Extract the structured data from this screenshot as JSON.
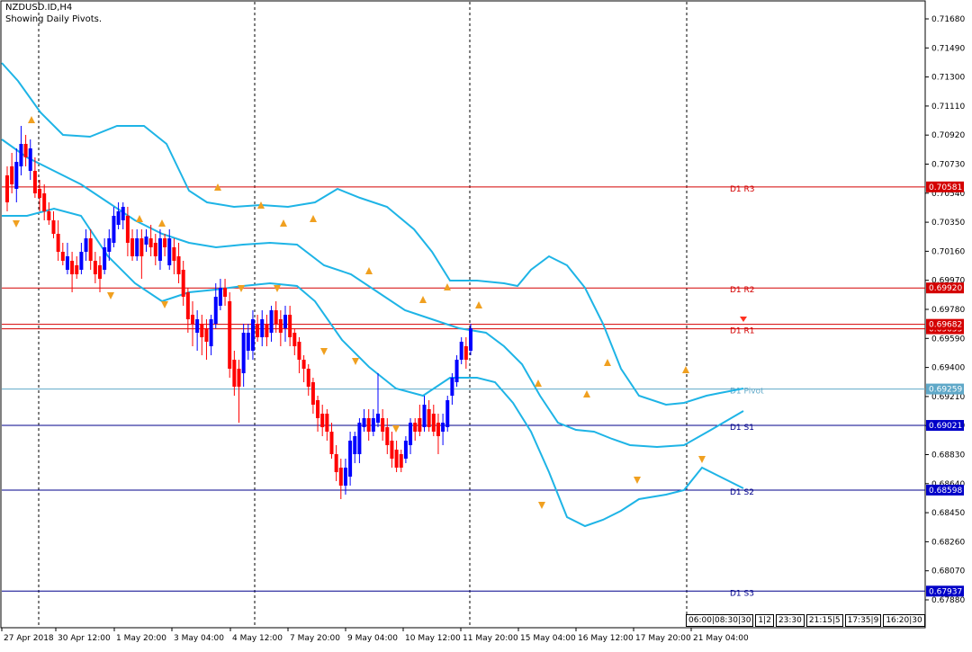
{
  "header": {
    "symbol": "NZDUSD.ID,H4",
    "subtitle": "Showing Daily Pivots."
  },
  "chart_data": {
    "type": "candlestick",
    "y_ticks": [
      "0.71680",
      "0.71490",
      "0.71300",
      "0.71110",
      "0.70920",
      "0.70730",
      "0.70540",
      "0.70350",
      "0.70160",
      "0.69970",
      "0.69780",
      "0.69590",
      "0.69400",
      "0.69210",
      "0.69020",
      "0.68830",
      "0.68640",
      "0.68450",
      "0.68260",
      "0.68070",
      "0.67880"
    ],
    "x_ticks": [
      "27 Apr 2018",
      "30 Apr 12:00",
      "1 May 20:00",
      "3 May 04:00",
      "4 May 12:00",
      "7 May 20:00",
      "9 May 04:00",
      "10 May 12:00",
      "11 May 20:00",
      "15 May 04:00",
      "16 May 12:00",
      "17 May 20:00",
      "21 May 04:00"
    ],
    "ylim": [
      0.6776,
      0.7174
    ],
    "pivot_levels": [
      {
        "label": "D1  R3",
        "value": 0.70581,
        "badge": "0.70581",
        "color": "#d40000",
        "badge_bg": "#d40000"
      },
      {
        "label": "D1  R2",
        "value": 0.6992,
        "badge": "0.69920",
        "color": "#d40000",
        "badge_bg": "#d40000"
      },
      {
        "label": "D1  R1",
        "value": 0.69653,
        "badge": "0.69653",
        "color": "#d40000",
        "badge_bg": "#d40000"
      },
      {
        "label": "D1  Pivot",
        "value": 0.69259,
        "badge": "0.69259",
        "color": "#5fa8c8",
        "badge_bg": "#5fa8c8"
      },
      {
        "label": "D1  S1",
        "value": 0.69021,
        "badge": "0.69021",
        "color": "#00008b",
        "badge_bg": "#0000c8"
      },
      {
        "label": "D1  S2",
        "value": 0.68598,
        "badge": "0.68598",
        "color": "#00008b",
        "badge_bg": "#0000c8"
      },
      {
        "label": "D1  S3",
        "value": 0.67937,
        "badge": "0.67937",
        "color": "#00008b",
        "badge_bg": "#0000c8"
      }
    ],
    "current_price": {
      "value": 0.69682,
      "badge": "0.69682",
      "color": "#d40000"
    },
    "colors": {
      "bull": "#0000ff",
      "bear": "#ff0000",
      "band": "#1eb4e6",
      "grid_dash": "#000000"
    }
  },
  "timeframe_bar": [
    "06:00",
    "08:30",
    "30",
    "1",
    "2",
    "23:30",
    "21:15",
    "5",
    "17:35",
    "9",
    "16:20",
    "30"
  ]
}
